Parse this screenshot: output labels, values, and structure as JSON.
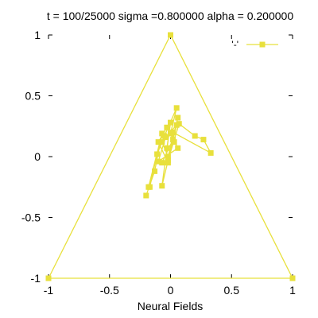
{
  "chart_data": {
    "type": "line",
    "title": "t = 100/25000 sigma =0.800000 alpha = 0.200000",
    "xlabel": "Neural Fields",
    "ylabel": "",
    "xlim": [
      -1,
      1
    ],
    "ylim": [
      -1,
      1
    ],
    "x_ticks": [
      -1,
      -0.5,
      0,
      0.5,
      1
    ],
    "x_tick_labels": [
      "-1",
      "-0.5",
      "0",
      "0.5",
      "1"
    ],
    "y_ticks": [
      -1,
      -0.5,
      0,
      0.5,
      1
    ],
    "y_tick_labels": [
      "-1",
      "-0.5",
      "0",
      "0.5",
      "1"
    ],
    "grid": false,
    "legend_position": "top-right",
    "colors": {
      "series": "#e8e03c",
      "axes": "#000000"
    },
    "series": [
      {
        "name": "'-'",
        "marker": "filled-square",
        "x": [
          -1,
          0,
          1,
          -1
        ],
        "y": [
          -1,
          1,
          -1,
          -1
        ]
      },
      {
        "marker": "filled-square",
        "x": [
          -0.2,
          -0.13,
          -0.07,
          -0.18,
          -0.17,
          -0.11,
          -0.05,
          0.05,
          0.0,
          -0.07,
          -0.02,
          0.06,
          0.02,
          -0.07,
          -0.02,
          0.07,
          0.2,
          0.27,
          0.33,
          0.02,
          -0.02,
          -0.1,
          -0.03,
          0.06,
          -0.1,
          -0.04,
          0.05,
          -0.07,
          0.0,
          -0.03,
          0.03
        ],
        "y": [
          -0.32,
          -0.12,
          0.19,
          -0.25,
          -0.25,
          0.02,
          0.17,
          0.4,
          0.19,
          0.12,
          0.0,
          0.32,
          0.14,
          -0.05,
          -0.03,
          0.27,
          0.17,
          0.14,
          0.03,
          0.2,
          -0.05,
          0.12,
          0.24,
          0.07,
          -0.04,
          0.16,
          0.26,
          -0.24,
          0.28,
          0.07,
          0.12
        ]
      }
    ]
  }
}
